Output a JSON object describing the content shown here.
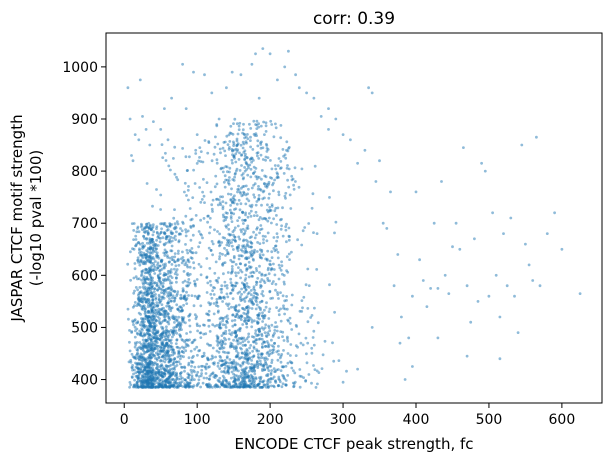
{
  "chart_data": {
    "type": "scatter",
    "title": "corr: 0.39",
    "xlabel": "ENCODE CTCF peak strength, fc",
    "ylabel_line1": "JASPAR CTCF motif strength",
    "ylabel_line2": "(-log10 pval *100)",
    "xlim": [
      -25,
      655
    ],
    "ylim": [
      355,
      1065
    ],
    "xticks": [
      0,
      100,
      200,
      300,
      400,
      500,
      600
    ],
    "yticks": [
      400,
      500,
      600,
      700,
      800,
      900,
      1000
    ],
    "xtick_labels": [
      "0",
      "100",
      "200",
      "300",
      "400",
      "500",
      "600"
    ],
    "ytick_labels": [
      "400",
      "500",
      "600",
      "700",
      "800",
      "900",
      "1000"
    ],
    "grid": false,
    "legend": "none",
    "point_color": "#1f77b4",
    "points": [
      [
        5,
        960
      ],
      [
        8,
        900
      ],
      [
        10,
        830
      ],
      [
        12,
        820
      ],
      [
        15,
        870
      ],
      [
        20,
        860
      ],
      [
        25,
        905
      ],
      [
        22,
        975
      ],
      [
        30,
        880
      ],
      [
        35,
        850
      ],
      [
        40,
        895
      ],
      [
        50,
        880
      ],
      [
        55,
        920
      ],
      [
        60,
        860
      ],
      [
        65,
        940
      ],
      [
        80,
        1005
      ],
      [
        85,
        920
      ],
      [
        95,
        990
      ],
      [
        98,
        840
      ],
      [
        100,
        870
      ],
      [
        110,
        985
      ],
      [
        120,
        950
      ],
      [
        130,
        900
      ],
      [
        140,
        960
      ],
      [
        148,
        990
      ],
      [
        160,
        985
      ],
      [
        165,
        870
      ],
      [
        175,
        1005
      ],
      [
        180,
        1025
      ],
      [
        185,
        940
      ],
      [
        190,
        1035
      ],
      [
        200,
        1025
      ],
      [
        210,
        975
      ],
      [
        220,
        1000
      ],
      [
        225,
        1030
      ],
      [
        235,
        985
      ],
      [
        240,
        960
      ],
      [
        250,
        950
      ],
      [
        260,
        940
      ],
      [
        270,
        905
      ],
      [
        280,
        880
      ],
      [
        290,
        900
      ],
      [
        300,
        870
      ],
      [
        310,
        860
      ],
      [
        320,
        815
      ],
      [
        330,
        840
      ],
      [
        335,
        960
      ],
      [
        340,
        950
      ],
      [
        345,
        780
      ],
      [
        350,
        820
      ],
      [
        355,
        700
      ],
      [
        360,
        690
      ],
      [
        365,
        760
      ],
      [
        370,
        580
      ],
      [
        375,
        640
      ],
      [
        378,
        470
      ],
      [
        380,
        520
      ],
      [
        385,
        400
      ],
      [
        390,
        480
      ],
      [
        395,
        560
      ],
      [
        400,
        760
      ],
      [
        405,
        630
      ],
      [
        410,
        590
      ],
      [
        415,
        540
      ],
      [
        420,
        575
      ],
      [
        425,
        700
      ],
      [
        430,
        575
      ],
      [
        435,
        780
      ],
      [
        440,
        600
      ],
      [
        445,
        565
      ],
      [
        450,
        655
      ],
      [
        455,
        700
      ],
      [
        460,
        650
      ],
      [
        465,
        845
      ],
      [
        470,
        580
      ],
      [
        475,
        510
      ],
      [
        480,
        670
      ],
      [
        485,
        550
      ],
      [
        490,
        815
      ],
      [
        495,
        800
      ],
      [
        500,
        560
      ],
      [
        505,
        720
      ],
      [
        510,
        600
      ],
      [
        515,
        520
      ],
      [
        520,
        680
      ],
      [
        525,
        580
      ],
      [
        530,
        710
      ],
      [
        535,
        560
      ],
      [
        540,
        490
      ],
      [
        545,
        850
      ],
      [
        550,
        660
      ],
      [
        555,
        620
      ],
      [
        560,
        590
      ],
      [
        565,
        865
      ],
      [
        570,
        580
      ],
      [
        580,
        680
      ],
      [
        600,
        650
      ],
      [
        625,
        565
      ],
      [
        590,
        720
      ],
      [
        515,
        440
      ],
      [
        470,
        445
      ],
      [
        430,
        480
      ],
      [
        395,
        425
      ],
      [
        340,
        500
      ],
      [
        320,
        420
      ],
      [
        300,
        395
      ],
      [
        280,
        920
      ]
    ],
    "dense_regions": [
      {
        "x": [
          0,
          120
        ],
        "y": [
          385,
          700
        ],
        "count": 1700,
        "x_mode": 40
      },
      {
        "x": [
          100,
          260
        ],
        "y": [
          385,
          900
        ],
        "count": 1100,
        "x_mode": 170
      },
      {
        "x": [
          0,
          330
        ],
        "y": [
          385,
          860
        ],
        "count": 800,
        "x_mode": 140
      }
    ]
  }
}
